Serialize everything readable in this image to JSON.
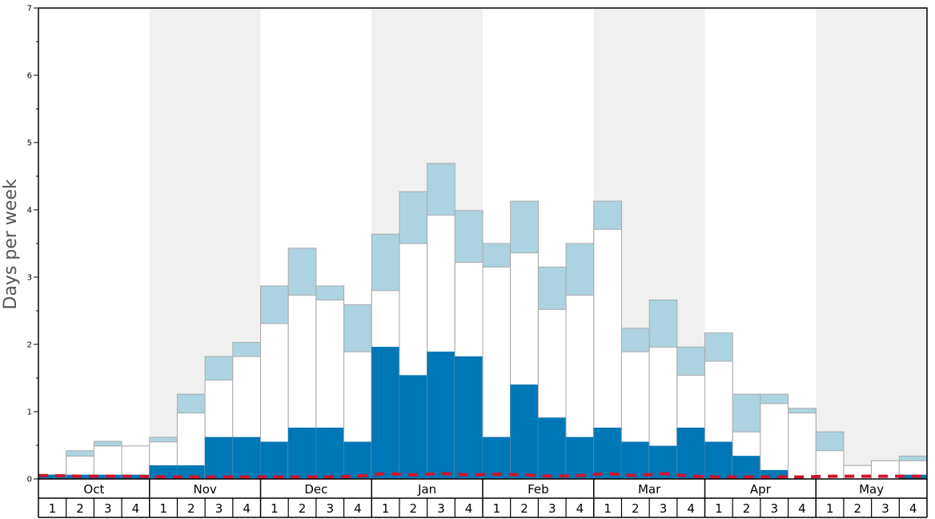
{
  "chart_data": {
    "type": "bar",
    "ylabel": "Days per week",
    "ylim": [
      0,
      7
    ],
    "y_ticks": [
      "0",
      "1",
      "2",
      "3",
      "4",
      "5",
      "6",
      "7"
    ],
    "months": [
      "Oct",
      "Nov",
      "Dec",
      "Jan",
      "Feb",
      "Mar",
      "Apr",
      "May"
    ],
    "week_labels": [
      "1",
      "2",
      "3",
      "4"
    ],
    "colors": {
      "dark": "#0077b6",
      "mid": "#ffffff",
      "light": "#add3e0",
      "shade": "#f0f0f0",
      "line": "#d0142c",
      "bar_edge": "#aaaaaa"
    },
    "series": [
      {
        "values": [
          0.06,
          0.06,
          0.06,
          0.06,
          0.2,
          0.2,
          0.62,
          0.62,
          0.55,
          0.76,
          0.76,
          0.55,
          1.96,
          1.54,
          1.89,
          1.82,
          0.62,
          1.4,
          0.91,
          0.62,
          0.76,
          0.55,
          0.49,
          0.76,
          0.55,
          0.34,
          0.13,
          0.0,
          0.0,
          0.0,
          0.0,
          0.06
        ]
      },
      {
        "values": [
          0.06,
          0.34,
          0.49,
          0.49,
          0.55,
          0.98,
          1.47,
          1.82,
          2.31,
          2.73,
          2.66,
          1.89,
          2.8,
          3.5,
          3.92,
          3.22,
          3.15,
          3.36,
          2.52,
          2.73,
          3.71,
          1.89,
          1.96,
          1.54,
          1.75,
          0.7,
          1.12,
          0.98,
          0.42,
          0.2,
          0.27,
          0.27
        ]
      },
      {
        "values": [
          0.06,
          0.42,
          0.56,
          0.49,
          0.62,
          1.26,
          1.82,
          2.03,
          2.87,
          3.43,
          2.87,
          2.59,
          3.64,
          4.27,
          4.69,
          3.99,
          3.5,
          4.13,
          3.15,
          3.5,
          4.13,
          2.24,
          2.66,
          1.96,
          2.17,
          1.26,
          1.26,
          1.05,
          0.7,
          0.2,
          0.27,
          0.34
        ]
      },
      {
        "values": [
          0.05,
          0.04,
          0.04,
          0.04,
          0.03,
          0.03,
          0.03,
          0.03,
          0.03,
          0.03,
          0.03,
          0.04,
          0.08,
          0.06,
          0.08,
          0.06,
          0.07,
          0.06,
          0.04,
          0.05,
          0.08,
          0.05,
          0.08,
          0.04,
          0.03,
          0.03,
          0.03,
          0.03,
          0.04,
          0.04,
          0.04,
          0.04
        ]
      }
    ]
  }
}
